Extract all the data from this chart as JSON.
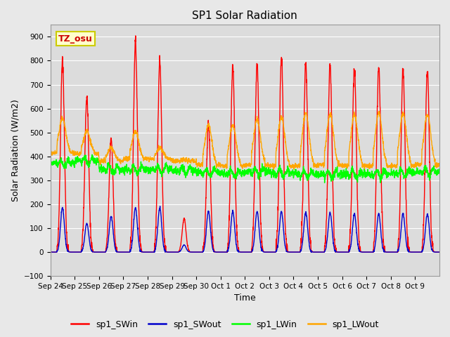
{
  "title": "SP1 Solar Radiation",
  "xlabel": "Time",
  "ylabel": "Solar Radiation (W/m2)",
  "ylim": [
    -100,
    950
  ],
  "yticks": [
    -100,
    0,
    100,
    200,
    300,
    400,
    500,
    600,
    700,
    800,
    900
  ],
  "n_days": 16,
  "colors": {
    "sp1_SWin": "#FF0000",
    "sp1_SWout": "#0000CC",
    "sp1_LWin": "#00FF00",
    "sp1_LWout": "#FFA500"
  },
  "plot_bg_color": "#DCDCDC",
  "fig_bg_color": "#E8E8E8",
  "annotation_text": "TZ_osu",
  "annotation_bg": "#FFFFCC",
  "annotation_border": "#CCCC00",
  "annotation_text_color": "#CC0000",
  "tick_labels": [
    "Sep 24",
    "Sep 25",
    "Sep 26",
    "Sep 27",
    "Sep 28",
    "Sep 29",
    "Sep 30",
    "Oct 1",
    "Oct 2",
    "Oct 3",
    "Oct 4",
    "Oct 5",
    "Oct 6",
    "Oct 7",
    "Oct 8",
    "Oct 9"
  ],
  "grid_color": "#FFFFFF",
  "linewidth": 1.0,
  "swin_peaks": [
    800,
    650,
    475,
    880,
    805,
    140,
    535,
    775,
    785,
    820,
    790,
    785,
    770,
    775,
    765,
    760
  ],
  "swout_peaks": [
    185,
    120,
    150,
    185,
    185,
    30,
    170,
    170,
    170,
    170,
    165,
    165,
    160,
    160,
    160,
    160
  ],
  "lwout_night": [
    415,
    410,
    380,
    390,
    390,
    380,
    365,
    360,
    365,
    360,
    360,
    365,
    360,
    360,
    360,
    365
  ],
  "lwout_day_peaks": [
    560,
    505,
    435,
    505,
    435,
    385,
    530,
    530,
    555,
    565,
    580,
    575,
    575,
    580,
    580,
    575
  ],
  "lwin_base": [
    370,
    380,
    345,
    345,
    345,
    340,
    335,
    330,
    335,
    330,
    325,
    325,
    325,
    325,
    330,
    335
  ]
}
